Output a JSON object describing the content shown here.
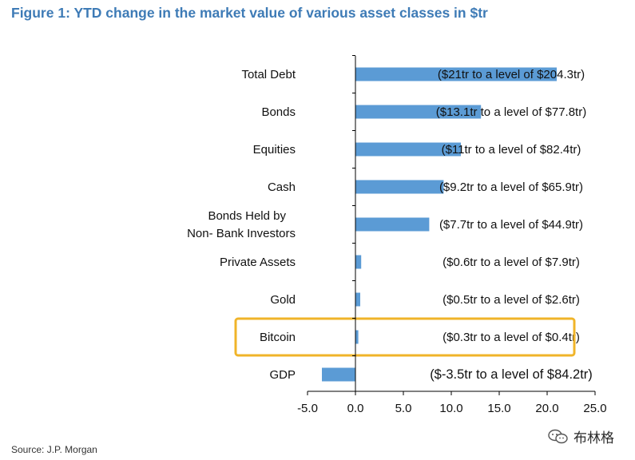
{
  "title": "Figure 1: YTD change in the market value of various asset classes in $tr",
  "source": "Source: J.P. Morgan",
  "watermark": "布林格",
  "colors": {
    "bar": "#5b9bd5",
    "title": "#3e7bb6",
    "highlight": "#f0b429",
    "axis": "#000000"
  },
  "highlight_category": "Bitcoin",
  "chart_data": {
    "type": "bar",
    "orientation": "horizontal",
    "categories": [
      "Total Debt",
      "Bonds",
      "Equities",
      "Cash",
      "Bonds Held by Non- Bank Investors",
      "Private Assets",
      "Gold",
      "Bitcoin",
      "GDP"
    ],
    "values": [
      21,
      13.1,
      11,
      9.2,
      7.7,
      0.6,
      0.5,
      0.3,
      -3.5
    ],
    "data_labels": [
      "($21tr to a level of $204.3tr)",
      "($13.1tr to a level of $77.8tr)",
      "($11tr to a level of $82.4tr)",
      "($9.2tr to a level of $65.9tr)",
      "($7.7tr to a level of $44.9tr)",
      "($0.6tr to a level of $7.9tr)",
      "($0.5tr to a level of $2.6tr)",
      "($0.3tr to a level of $0.4tr)",
      "($-3.5tr to a level of $84.2tr)"
    ],
    "xlim": [
      -5,
      25
    ],
    "xticks": [
      -5,
      0,
      5,
      10,
      15,
      20,
      25
    ],
    "xtick_labels": [
      "-5.0",
      "0.0",
      "5.0",
      "10.0",
      "15.0",
      "20.0",
      "25.0"
    ],
    "grid": false,
    "legend": "none"
  }
}
